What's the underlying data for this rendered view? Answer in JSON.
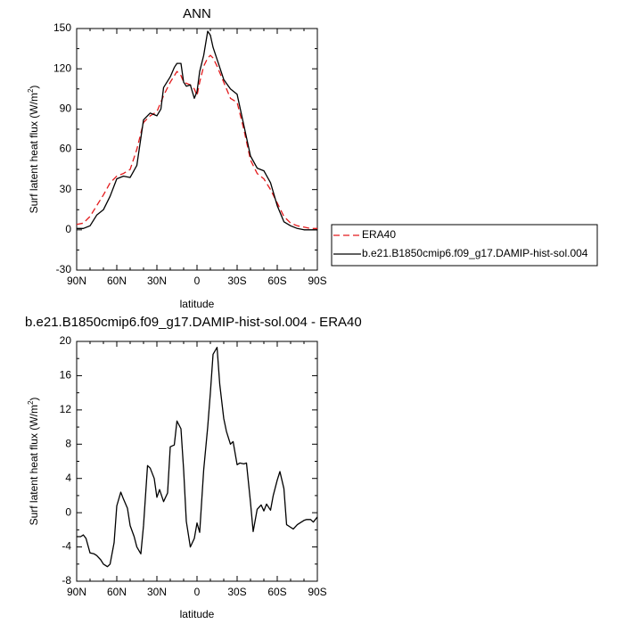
{
  "chart_data": [
    {
      "type": "line",
      "title": "ANN",
      "xlabel": "latitude",
      "ylabel": "Surf latent heat flux (W/m",
      "ylabel_sup": "2",
      "ylabel_close": ")",
      "xlim": [
        90,
        -90
      ],
      "ylim": [
        -30,
        150
      ],
      "yticks": [
        -30,
        0,
        30,
        60,
        90,
        120,
        150
      ],
      "xticks": [
        90,
        60,
        30,
        0,
        -30,
        -60,
        -90
      ],
      "xtick_labels": [
        "90N",
        "60N",
        "30N",
        "0",
        "30S",
        "60S",
        "90S"
      ],
      "legend_position": "right",
      "series": [
        {
          "name": "ERA40",
          "color": "#e31a1c",
          "dash": "dashed",
          "x": [
            90,
            85,
            80,
            75,
            70,
            65,
            60,
            55,
            50,
            45,
            40,
            35,
            30,
            25,
            20,
            15,
            12,
            10,
            5,
            2,
            0,
            -2,
            -5,
            -8,
            -10,
            -12,
            -15,
            -20,
            -25,
            -30,
            -35,
            -40,
            -45,
            -50,
            -55,
            -60,
            -65,
            -70,
            -75,
            -80,
            -85,
            -90
          ],
          "y": [
            4,
            5,
            10,
            18,
            26,
            35,
            40,
            42,
            45,
            60,
            80,
            85,
            88,
            100,
            110,
            118,
            115,
            110,
            108,
            105,
            100,
            110,
            122,
            128,
            130,
            128,
            122,
            110,
            98,
            95,
            75,
            52,
            42,
            38,
            30,
            20,
            10,
            5,
            3,
            2,
            1,
            1
          ]
        },
        {
          "name": "b.e21.B1850cmip6.f09_g17.DAMIP-hist-sol.004",
          "color": "#000000",
          "dash": "solid",
          "x": [
            90,
            85,
            80,
            75,
            70,
            65,
            60,
            55,
            50,
            45,
            40,
            35,
            30,
            27,
            25,
            20,
            17,
            15,
            12,
            10,
            8,
            5,
            2,
            0,
            -2,
            -5,
            -8,
            -10,
            -12,
            -15,
            -20,
            -25,
            -30,
            -35,
            -40,
            -45,
            -50,
            -55,
            -60,
            -65,
            -70,
            -75,
            -80,
            -85,
            -90
          ],
          "y": [
            1,
            1,
            3,
            11,
            15,
            25,
            38,
            40,
            39,
            48,
            82,
            87,
            85,
            90,
            106,
            114,
            121,
            124,
            124,
            110,
            107,
            108,
            98,
            103,
            118,
            130,
            148,
            145,
            136,
            127,
            112,
            105,
            101,
            78,
            55,
            46,
            44,
            35,
            18,
            6,
            3,
            1,
            0,
            0,
            0
          ]
        }
      ]
    },
    {
      "type": "line",
      "title": "b.e21.B1850cmip6.f09_g17.DAMIP-hist-sol.004 - ERA40",
      "xlabel": "latitude",
      "ylabel": "Surf latent heat flux (W/m",
      "ylabel_sup": "2",
      "ylabel_close": ")",
      "xlim": [
        90,
        -90
      ],
      "ylim": [
        -8,
        20
      ],
      "yticks": [
        -8,
        -4,
        0,
        4,
        8,
        12,
        16,
        20
      ],
      "xticks": [
        90,
        60,
        30,
        0,
        -30,
        -60,
        -90
      ],
      "xtick_labels": [
        "90N",
        "60N",
        "30N",
        "0",
        "30S",
        "60S",
        "90S"
      ],
      "series": [
        {
          "name": "",
          "color": "#000000",
          "dash": "solid",
          "x": [
            90,
            87,
            85,
            83,
            80,
            77,
            75,
            72,
            70,
            67,
            65,
            62,
            60,
            57,
            55,
            52,
            50,
            47,
            45,
            42,
            40,
            37,
            35,
            32,
            30,
            28,
            25,
            22,
            20,
            17,
            15,
            12,
            10,
            8,
            5,
            2,
            0,
            -2,
            -5,
            -8,
            -10,
            -12,
            -15,
            -17,
            -20,
            -22,
            -25,
            -27,
            -30,
            -32,
            -35,
            -37,
            -40,
            -42,
            -45,
            -48,
            -50,
            -52,
            -55,
            -57,
            -60,
            -62,
            -65,
            -67,
            -70,
            -72,
            -75,
            -78,
            -80,
            -82,
            -85,
            -87,
            -90
          ],
          "y": [
            -2.8,
            -2.8,
            -2.6,
            -3,
            -4.7,
            -4.8,
            -5,
            -5.5,
            -6,
            -6.3,
            -6,
            -3.5,
            0.8,
            2.4,
            1.6,
            0.5,
            -1.5,
            -2.8,
            -4,
            -4.8,
            -1.5,
            5.5,
            5.2,
            4,
            1.8,
            2.7,
            1.3,
            2.3,
            7.7,
            7.9,
            10.7,
            9.8,
            5,
            -1,
            -4,
            -3,
            -1.2,
            -2.3,
            5,
            10,
            14,
            18.5,
            19.3,
            15,
            11,
            9.5,
            8,
            8.3,
            5.6,
            5.8,
            5.7,
            5.8,
            1.2,
            -2.2,
            0.4,
            0.9,
            0.2,
            1,
            0.3,
            2,
            3.8,
            4.8,
            2.8,
            -1.4,
            -1.7,
            -1.9,
            -1.4,
            -1.1,
            -0.9,
            -0.8,
            -0.8,
            -1.1,
            -0.5
          ]
        }
      ]
    }
  ]
}
